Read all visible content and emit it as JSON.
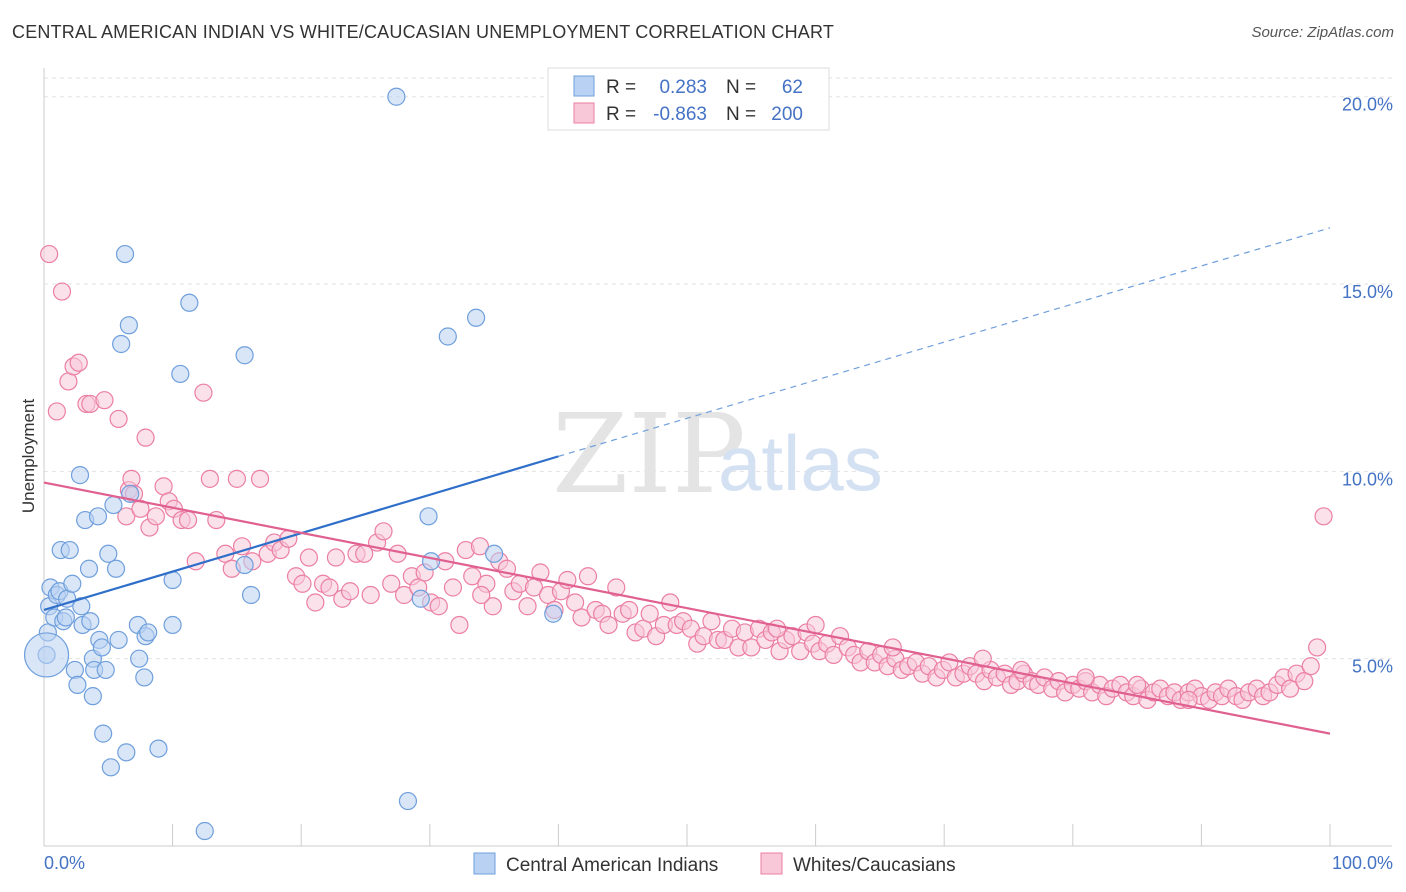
{
  "header": {
    "title": "CENTRAL AMERICAN INDIAN VS WHITE/CAUCASIAN UNEMPLOYMENT CORRELATION CHART",
    "source": "Source: ZipAtlas.com"
  },
  "watermark": {
    "zip": "ZIP",
    "atlas": "atlas"
  },
  "legend_top": {
    "rows": [
      {
        "r_label": "R =",
        "r_value": "0.283",
        "n_label": "N =",
        "n_value": "62"
      },
      {
        "r_label": "R =",
        "r_value": "-0.863",
        "n_label": "N =",
        "n_value": "200"
      }
    ]
  },
  "chart_data": {
    "type": "scatter",
    "title": "CENTRAL AMERICAN INDIAN VS WHITE/CAUCASIAN UNEMPLOYMENT CORRELATION CHART",
    "xlabel": "",
    "ylabel": "Unemployment",
    "xlim": [
      0,
      100
    ],
    "ylim": [
      0,
      20.5
    ],
    "x_tick_labels": [
      "0.0%",
      "100.0%"
    ],
    "y_ticks": [
      5,
      10,
      15,
      20
    ],
    "y_tick_labels": [
      "5.0%",
      "10.0%",
      "15.0%",
      "20.0%"
    ],
    "grid": true,
    "legend_position": "bottom",
    "series": [
      {
        "name": "Central American Indians",
        "color": "#6f9fdc",
        "fill": "#b9d2f3",
        "r": 0.283,
        "n": 62,
        "trend": {
          "x0": 0,
          "y0": 6.3,
          "x1": 40,
          "y1": 10.4,
          "dashed_to_x": 100,
          "dashed_to_y": 16.5
        },
        "points": [
          [
            0.2,
            5.1
          ],
          [
            0.3,
            5.7
          ],
          [
            0.4,
            6.4
          ],
          [
            0.5,
            6.9
          ],
          [
            0.8,
            6.1
          ],
          [
            1.0,
            6.7
          ],
          [
            1.2,
            6.8
          ],
          [
            1.3,
            7.9
          ],
          [
            1.5,
            6.0
          ],
          [
            1.7,
            6.1
          ],
          [
            1.8,
            6.6
          ],
          [
            2.0,
            7.9
          ],
          [
            2.2,
            7.0
          ],
          [
            2.4,
            4.7
          ],
          [
            2.6,
            4.3
          ],
          [
            2.8,
            9.9
          ],
          [
            2.9,
            6.4
          ],
          [
            3.0,
            5.9
          ],
          [
            3.2,
            8.7
          ],
          [
            3.5,
            7.4
          ],
          [
            3.6,
            6.0
          ],
          [
            3.8,
            4.0
          ],
          [
            3.8,
            5.0
          ],
          [
            3.9,
            4.7
          ],
          [
            4.2,
            8.8
          ],
          [
            4.3,
            5.5
          ],
          [
            4.5,
            5.3
          ],
          [
            4.6,
            3.0
          ],
          [
            4.8,
            4.7
          ],
          [
            5.0,
            7.8
          ],
          [
            5.2,
            2.1
          ],
          [
            5.4,
            9.1
          ],
          [
            5.6,
            7.4
          ],
          [
            5.8,
            5.5
          ],
          [
            6.0,
            13.4
          ],
          [
            6.3,
            15.8
          ],
          [
            6.4,
            2.5
          ],
          [
            6.6,
            13.9
          ],
          [
            6.7,
            9.4
          ],
          [
            7.3,
            5.9
          ],
          [
            7.4,
            5.0
          ],
          [
            7.8,
            4.5
          ],
          [
            7.9,
            5.6
          ],
          [
            8.1,
            5.7
          ],
          [
            8.9,
            2.6
          ],
          [
            10.0,
            7.1
          ],
          [
            10.0,
            5.9
          ],
          [
            10.6,
            12.6
          ],
          [
            11.3,
            14.5
          ],
          [
            12.5,
            0.4
          ],
          [
            15.6,
            13.1
          ],
          [
            15.6,
            7.5
          ],
          [
            16.1,
            6.7
          ],
          [
            27.4,
            20.0
          ],
          [
            28.3,
            1.2
          ],
          [
            29.3,
            6.6
          ],
          [
            29.9,
            8.8
          ],
          [
            30.1,
            7.6
          ],
          [
            31.4,
            13.6
          ],
          [
            33.6,
            14.1
          ],
          [
            35.0,
            7.8
          ],
          [
            39.6,
            6.2
          ]
        ]
      },
      {
        "name": "Whites/Caucasians",
        "color": "#eb7fa3",
        "fill": "#f8c8d8",
        "r": -0.863,
        "n": 200,
        "trend": {
          "x0": 0,
          "y0": 9.7,
          "x1": 100,
          "y1": 3.0
        },
        "points": [
          [
            0.4,
            15.8
          ],
          [
            1.0,
            11.6
          ],
          [
            1.4,
            14.8
          ],
          [
            1.9,
            12.4
          ],
          [
            2.3,
            12.8
          ],
          [
            2.7,
            12.9
          ],
          [
            3.3,
            11.8
          ],
          [
            3.6,
            11.8
          ],
          [
            4.7,
            11.9
          ],
          [
            5.8,
            11.4
          ],
          [
            6.4,
            8.8
          ],
          [
            6.6,
            9.5
          ],
          [
            6.8,
            9.8
          ],
          [
            7.0,
            9.4
          ],
          [
            7.5,
            9.0
          ],
          [
            7.9,
            10.9
          ],
          [
            8.2,
            8.5
          ],
          [
            8.7,
            8.8
          ],
          [
            9.3,
            9.6
          ],
          [
            9.7,
            9.2
          ],
          [
            10.1,
            9.0
          ],
          [
            10.7,
            8.7
          ],
          [
            11.2,
            8.7
          ],
          [
            11.8,
            7.6
          ],
          [
            12.4,
            12.1
          ],
          [
            12.9,
            9.8
          ],
          [
            13.4,
            8.7
          ],
          [
            14.1,
            7.8
          ],
          [
            14.6,
            7.4
          ],
          [
            15.0,
            9.8
          ],
          [
            15.4,
            8.0
          ],
          [
            16.2,
            7.6
          ],
          [
            16.8,
            9.8
          ],
          [
            17.4,
            7.8
          ],
          [
            17.9,
            8.1
          ],
          [
            18.4,
            7.9
          ],
          [
            19.0,
            8.2
          ],
          [
            19.6,
            7.2
          ],
          [
            20.1,
            7.0
          ],
          [
            20.6,
            7.7
          ],
          [
            21.1,
            6.5
          ],
          [
            21.7,
            7.0
          ],
          [
            22.2,
            6.9
          ],
          [
            22.7,
            7.7
          ],
          [
            23.2,
            6.6
          ],
          [
            23.8,
            6.8
          ],
          [
            24.3,
            7.8
          ],
          [
            24.9,
            7.8
          ],
          [
            25.4,
            6.7
          ],
          [
            25.9,
            8.1
          ],
          [
            26.4,
            8.4
          ],
          [
            27.0,
            7.0
          ],
          [
            27.5,
            7.8
          ],
          [
            28.0,
            6.7
          ],
          [
            28.6,
            7.2
          ],
          [
            29.1,
            6.9
          ],
          [
            29.6,
            7.3
          ],
          [
            30.1,
            6.5
          ],
          [
            30.7,
            6.4
          ],
          [
            31.2,
            7.6
          ],
          [
            31.8,
            6.9
          ],
          [
            32.3,
            5.9
          ],
          [
            32.8,
            7.9
          ],
          [
            33.3,
            7.2
          ],
          [
            33.9,
            8.0
          ],
          [
            34.4,
            7.0
          ],
          [
            34.9,
            6.4
          ],
          [
            35.4,
            7.6
          ],
          [
            36.0,
            7.4
          ],
          [
            36.5,
            6.8
          ],
          [
            37.0,
            7.0
          ],
          [
            37.6,
            6.4
          ],
          [
            38.1,
            6.9
          ],
          [
            38.6,
            7.3
          ],
          [
            39.2,
            6.7
          ],
          [
            39.7,
            6.3
          ],
          [
            40.2,
            6.8
          ],
          [
            40.7,
            7.1
          ],
          [
            41.3,
            6.5
          ],
          [
            41.8,
            6.1
          ],
          [
            42.3,
            7.2
          ],
          [
            42.9,
            6.3
          ],
          [
            43.4,
            6.2
          ],
          [
            43.9,
            5.9
          ],
          [
            44.5,
            6.9
          ],
          [
            45.0,
            6.2
          ],
          [
            45.5,
            6.3
          ],
          [
            46.0,
            5.7
          ],
          [
            46.6,
            5.8
          ],
          [
            47.1,
            6.2
          ],
          [
            47.6,
            5.6
          ],
          [
            48.2,
            5.9
          ],
          [
            48.7,
            6.5
          ],
          [
            49.2,
            5.9
          ],
          [
            49.7,
            6.0
          ],
          [
            50.3,
            5.8
          ],
          [
            50.8,
            5.4
          ],
          [
            51.3,
            5.6
          ],
          [
            51.9,
            6.0
          ],
          [
            52.4,
            5.5
          ],
          [
            52.9,
            5.5
          ],
          [
            53.5,
            5.8
          ],
          [
            54.0,
            5.3
          ],
          [
            54.5,
            5.7
          ],
          [
            55.0,
            5.3
          ],
          [
            55.6,
            5.8
          ],
          [
            56.1,
            5.5
          ],
          [
            56.6,
            5.7
          ],
          [
            57.2,
            5.2
          ],
          [
            57.7,
            5.5
          ],
          [
            58.2,
            5.6
          ],
          [
            58.8,
            5.2
          ],
          [
            59.3,
            5.7
          ],
          [
            59.8,
            5.4
          ],
          [
            60.3,
            5.2
          ],
          [
            60.9,
            5.4
          ],
          [
            61.4,
            5.1
          ],
          [
            61.9,
            5.6
          ],
          [
            62.5,
            5.3
          ],
          [
            63.0,
            5.1
          ],
          [
            63.5,
            4.9
          ],
          [
            64.1,
            5.2
          ],
          [
            64.6,
            4.9
          ],
          [
            65.1,
            5.1
          ],
          [
            65.6,
            4.8
          ],
          [
            66.2,
            5.0
          ],
          [
            66.7,
            4.7
          ],
          [
            67.2,
            4.8
          ],
          [
            67.8,
            4.9
          ],
          [
            68.3,
            4.6
          ],
          [
            68.8,
            4.8
          ],
          [
            69.4,
            4.5
          ],
          [
            69.9,
            4.7
          ],
          [
            70.4,
            4.9
          ],
          [
            70.9,
            4.5
          ],
          [
            71.5,
            4.6
          ],
          [
            72.0,
            4.8
          ],
          [
            72.5,
            4.6
          ],
          [
            73.1,
            4.4
          ],
          [
            73.6,
            4.7
          ],
          [
            74.1,
            4.5
          ],
          [
            74.7,
            4.6
          ],
          [
            75.2,
            4.3
          ],
          [
            75.7,
            4.4
          ],
          [
            76.2,
            4.6
          ],
          [
            76.8,
            4.4
          ],
          [
            77.3,
            4.3
          ],
          [
            77.8,
            4.5
          ],
          [
            78.4,
            4.2
          ],
          [
            78.9,
            4.4
          ],
          [
            79.4,
            4.1
          ],
          [
            80.0,
            4.3
          ],
          [
            80.5,
            4.2
          ],
          [
            81.0,
            4.4
          ],
          [
            81.5,
            4.1
          ],
          [
            82.1,
            4.3
          ],
          [
            82.6,
            4.0
          ],
          [
            83.1,
            4.2
          ],
          [
            83.7,
            4.3
          ],
          [
            84.2,
            4.1
          ],
          [
            84.7,
            4.0
          ],
          [
            85.3,
            4.2
          ],
          [
            85.8,
            3.9
          ],
          [
            86.3,
            4.1
          ],
          [
            86.8,
            4.2
          ],
          [
            87.4,
            4.0
          ],
          [
            87.9,
            4.1
          ],
          [
            88.4,
            3.9
          ],
          [
            89.0,
            4.1
          ],
          [
            89.5,
            4.2
          ],
          [
            90.0,
            4.0
          ],
          [
            90.6,
            3.9
          ],
          [
            91.1,
            4.1
          ],
          [
            91.6,
            4.0
          ],
          [
            92.1,
            4.2
          ],
          [
            92.7,
            4.0
          ],
          [
            93.2,
            3.9
          ],
          [
            93.7,
            4.1
          ],
          [
            94.3,
            4.2
          ],
          [
            94.8,
            4.0
          ],
          [
            95.3,
            4.1
          ],
          [
            95.9,
            4.3
          ],
          [
            96.4,
            4.5
          ],
          [
            96.9,
            4.2
          ],
          [
            97.4,
            4.6
          ],
          [
            98.0,
            4.4
          ],
          [
            98.5,
            4.8
          ],
          [
            99.0,
            5.3
          ],
          [
            99.5,
            8.8
          ],
          [
            34.0,
            6.7
          ],
          [
            57.0,
            5.8
          ],
          [
            73.0,
            5.0
          ],
          [
            76.0,
            4.7
          ],
          [
            81.0,
            4.5
          ],
          [
            85.0,
            4.3
          ],
          [
            60.0,
            5.9
          ],
          [
            66.0,
            5.3
          ],
          [
            89.0,
            3.9
          ]
        ]
      }
    ]
  }
}
